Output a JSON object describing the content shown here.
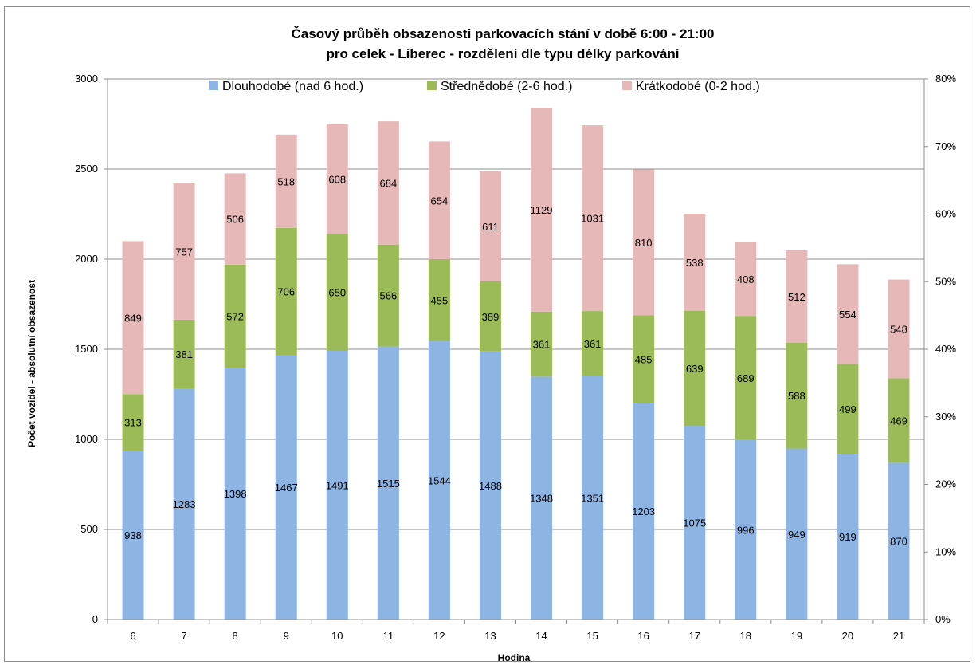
{
  "chart_data": {
    "type": "bar",
    "stacked": true,
    "title": "Časový průběh obsazenosti parkovacích stání  v době 6:00 - 21:00",
    "subtitle": "pro celek - Liberec - rozdělení dle typu délky parkování",
    "xlabel": "Hodina",
    "ylabel": "Počet vozidel - absolutní obsazenost",
    "ylim": [
      0,
      3000
    ],
    "yticks": [
      "0",
      "500",
      "1000",
      "1500",
      "2000",
      "2500",
      "3000"
    ],
    "y2lim": [
      0,
      0.8
    ],
    "y2ticks": [
      "0%",
      "10%",
      "20%",
      "30%",
      "40%",
      "50%",
      "60%",
      "70%",
      "80%"
    ],
    "grid": true,
    "legend_position": "top",
    "categories": [
      "6",
      "7",
      "8",
      "9",
      "10",
      "11",
      "12",
      "13",
      "14",
      "15",
      "16",
      "17",
      "18",
      "19",
      "20",
      "21"
    ],
    "series": [
      {
        "name": "Dlouhodobé (nad 6 hod.)",
        "color": "#8eb4e3",
        "values": [
          938,
          1283,
          1398,
          1467,
          1491,
          1515,
          1544,
          1488,
          1348,
          1351,
          1203,
          1075,
          996,
          949,
          919,
          870
        ]
      },
      {
        "name": "Střednědobé (2-6 hod.)",
        "color": "#9bbb59",
        "values": [
          313,
          381,
          572,
          706,
          650,
          566,
          455,
          389,
          361,
          361,
          485,
          639,
          689,
          588,
          499,
          469
        ]
      },
      {
        "name": "Krátkodobé (0-2 hod.)",
        "color": "#e6b9b8",
        "values": [
          849,
          757,
          506,
          518,
          608,
          684,
          654,
          611,
          1129,
          1031,
          810,
          538,
          408,
          512,
          554,
          548
        ]
      }
    ]
  }
}
